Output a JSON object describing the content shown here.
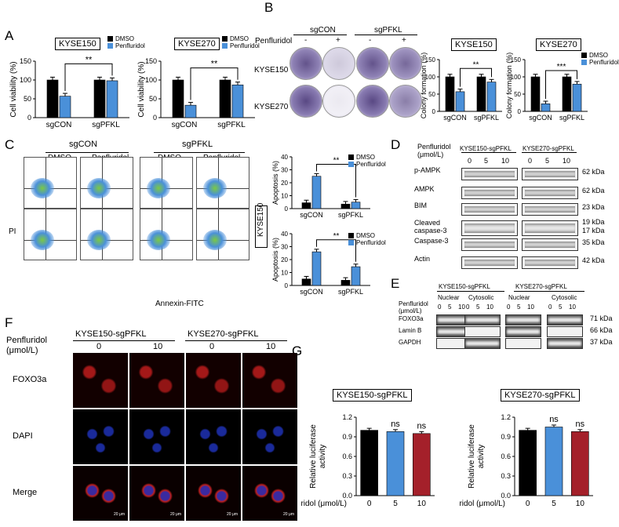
{
  "panels": {
    "A": "A",
    "B": "B",
    "C": "C",
    "D": "D",
    "E": "E",
    "F": "F",
    "G": "G"
  },
  "colors": {
    "dmso": "#000000",
    "penfluridol": "#4a90d9",
    "red_bar": "#a4202a",
    "accent_green": "#7ac943"
  },
  "panelA": {
    "legend": [
      "DMSO",
      "Penfluridol"
    ],
    "ylabel": "Cell viability (%)",
    "categories": [
      "sgCON",
      "sgPFKL"
    ],
    "sig": "**",
    "chart_data": [
      {
        "type": "bar",
        "title": "KYSE150",
        "categories": [
          "sgCON",
          "sgPFKL"
        ],
        "ylim": [
          0,
          150
        ],
        "yticks": [
          "0",
          "50",
          "100",
          "150"
        ],
        "series": [
          {
            "name": "DMSO",
            "values": [
              100,
              100
            ]
          },
          {
            "name": "Penfluridol",
            "values": [
              57,
              98
            ]
          }
        ]
      },
      {
        "type": "bar",
        "title": "KYSE270",
        "categories": [
          "sgCON",
          "sgPFKL"
        ],
        "ylim": [
          0,
          150
        ],
        "yticks": [
          "0",
          "50",
          "100",
          "150"
        ],
        "series": [
          {
            "name": "DMSO",
            "values": [
              100,
              100
            ]
          },
          {
            "name": "Penfluridol",
            "values": [
              33,
              87
            ]
          }
        ]
      }
    ]
  },
  "panelB": {
    "groups": [
      "sgCON",
      "sgPFKL"
    ],
    "treatment_label": "Penfluridol",
    "signs": [
      "-",
      "+",
      "-",
      "+"
    ],
    "rows": [
      "KYSE150",
      "KYSE270"
    ],
    "legend": [
      "DMSO",
      "Penfluridol"
    ],
    "ylabel": "Colony formation (%)",
    "sig": [
      "**",
      "***"
    ],
    "chart_data": [
      {
        "type": "bar",
        "title": "KYSE150",
        "categories": [
          "sgCON",
          "sgPFKL"
        ],
        "ylim": [
          0,
          150
        ],
        "yticks": [
          "0",
          "50",
          "100",
          "150"
        ],
        "series": [
          {
            "name": "DMSO",
            "values": [
              100,
              100
            ]
          },
          {
            "name": "Penfluridol",
            "values": [
              57,
              85
            ]
          }
        ]
      },
      {
        "type": "bar",
        "title": "KYSE270",
        "categories": [
          "sgCON",
          "sgPFKL"
        ],
        "ylim": [
          0,
          150
        ],
        "yticks": [
          "0",
          "50",
          "100",
          "150"
        ],
        "series": [
          {
            "name": "DMSO",
            "values": [
              100,
              100
            ]
          },
          {
            "name": "Penfluridol",
            "values": [
              22,
              79
            ]
          }
        ]
      }
    ]
  },
  "panelC": {
    "groups": [
      "sgCON",
      "sgPFKL"
    ],
    "treatments": [
      "DMSO",
      "Penfluridol",
      "DMSO",
      "Penfluridol"
    ],
    "ylab": "PI",
    "xlab": "Annexin-FITC",
    "rows": [
      "KYSE150",
      "KYSE270"
    ],
    "legend": [
      "DMSO",
      "Penfluridol"
    ],
    "ylabel": "Apoptosis (%)",
    "sig": "**",
    "chart_data": [
      {
        "type": "bar",
        "title": "KYSE150",
        "categories": [
          "sgCON",
          "sgPFKL"
        ],
        "ylim": [
          0,
          40
        ],
        "yticks": [
          "0",
          "10",
          "20",
          "30",
          "40"
        ],
        "series": [
          {
            "name": "DMSO",
            "values": [
              4.5,
              3.5
            ]
          },
          {
            "name": "Penfluridol",
            "values": [
              25,
              5
            ]
          }
        ]
      },
      {
        "type": "bar",
        "title": "KYSE270",
        "categories": [
          "sgCON",
          "sgPFKL"
        ],
        "ylim": [
          0,
          40
        ],
        "yticks": [
          "0",
          "10",
          "20",
          "30",
          "40"
        ],
        "series": [
          {
            "name": "DMSO",
            "values": [
              5,
              4
            ]
          },
          {
            "name": "Penfluridol",
            "values": [
              26,
              14.5
            ]
          }
        ]
      }
    ]
  },
  "panelD": {
    "treatment": "Penfluridol",
    "unit": "(μmol/L)",
    "groups": [
      "KYSE150-sgPFKL",
      "KYSE270-sgPFKL"
    ],
    "doses": [
      "0",
      "5",
      "10",
      "0",
      "5",
      "10"
    ],
    "proteins": [
      "p-AMPK",
      "AMPK",
      "BIM",
      "Cleaved\ncaspase-3",
      "Caspase-3",
      "Actin"
    ],
    "kda": [
      "62 kDa",
      "62 kDa",
      "23 kDa",
      "19 kDa",
      "17 kDa",
      "35 kDa",
      "42 kDa"
    ]
  },
  "panelE": {
    "treatment": "Penfluridol",
    "unit": "(μmol/L)",
    "groups": [
      "KYSE150-sgPFKL",
      "KYSE270-sgPFKL"
    ],
    "fractions": [
      "Nuclear",
      "Cytosolic",
      "Nuclear",
      "Cytosolic"
    ],
    "doses": [
      "0",
      "5",
      "10"
    ],
    "proteins": [
      "FOXO3a",
      "Lamin B",
      "GAPDH"
    ],
    "kda": [
      "71 kDa",
      "66 kDa",
      "37 kDa"
    ]
  },
  "panelF": {
    "treatment": "Penfluridol",
    "unit": "(μmol/L)",
    "groups": [
      "KYSE150-sgPFKL",
      "KYSE270-sgPFKL"
    ],
    "doses": [
      "0",
      "10",
      "0",
      "10"
    ],
    "rows": [
      "FOXO3a",
      "DAPI",
      "Merge"
    ],
    "scale": "20 μm"
  },
  "panelG": {
    "ylabel": "Relative luciferase\nactivity",
    "xlabel_prefix": "Penfluridol (μmol/L)",
    "sig": [
      "ns",
      "ns"
    ],
    "chart_data": [
      {
        "type": "bar",
        "title": "KYSE150-sgPFKL",
        "categories": [
          "0",
          "5",
          "10"
        ],
        "ylim": [
          0,
          1.2
        ],
        "yticks": [
          "0.0",
          "0.3",
          "0.6",
          "0.9",
          "1.2"
        ],
        "values": [
          1.0,
          0.98,
          0.95
        ]
      },
      {
        "type": "bar",
        "title": "KYSE270-sgPFKL",
        "categories": [
          "0",
          "5",
          "10"
        ],
        "ylim": [
          0,
          1.2
        ],
        "yticks": [
          "0.0",
          "0.3",
          "0.6",
          "0.9",
          "1.2"
        ],
        "values": [
          1.0,
          1.05,
          0.98
        ]
      }
    ]
  }
}
